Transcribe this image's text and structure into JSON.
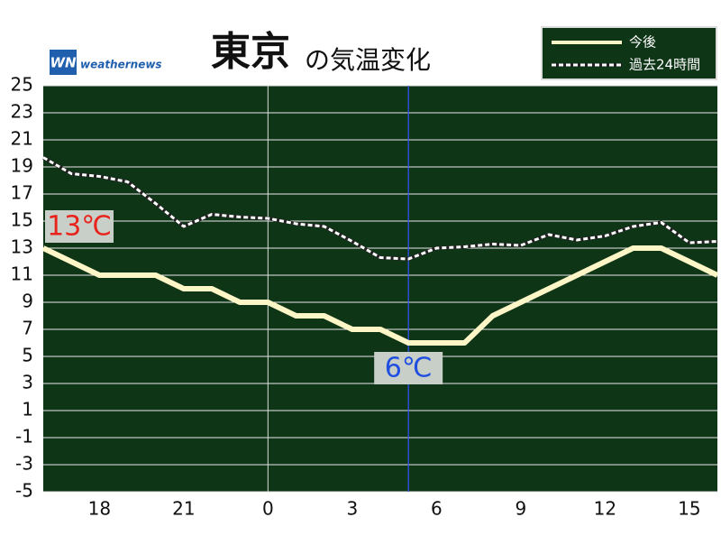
{
  "chart_data": {
    "type": "line",
    "title_parts": [
      "東京",
      "の気温変化"
    ],
    "logo": {
      "mark": "WN",
      "text": "weathernews"
    },
    "x": [
      -8,
      -7,
      -6,
      -5,
      -4,
      -3,
      -2,
      -1,
      0,
      1,
      2,
      3,
      4,
      5,
      6,
      7,
      8,
      9,
      10,
      11,
      12,
      13,
      14,
      15,
      16
    ],
    "xlim": [
      -8,
      16
    ],
    "xticks": [
      {
        "value": -6,
        "label": "18"
      },
      {
        "value": -3,
        "label": "21"
      },
      0,
      3,
      6,
      9,
      12,
      15
    ],
    "ylim": [
      -5,
      25
    ],
    "yticks": [
      25,
      23,
      21,
      19,
      17,
      15,
      13,
      11,
      9,
      7,
      5,
      3,
      1,
      -1,
      -3,
      -5
    ],
    "grid": true,
    "now": 5,
    "series": [
      {
        "name": "今後",
        "color": "#fff6c8",
        "style": "solid",
        "values": [
          13,
          12,
          11,
          11,
          11,
          10,
          10,
          9,
          9,
          8,
          8,
          7,
          7,
          6,
          6,
          6,
          8,
          9,
          10,
          11,
          12,
          13,
          13,
          12,
          11
        ],
        "value_labels": [
          "13℃",
          null,
          null,
          null,
          null,
          null,
          null,
          null,
          null,
          null,
          null,
          null,
          null,
          "6℃",
          null,
          null,
          null,
          null,
          null,
          null,
          null,
          null,
          null,
          null,
          null
        ]
      },
      {
        "name": "過去24時間",
        "color": "#ffffff",
        "style": "dashed",
        "values": [
          19.7,
          18.5,
          18.3,
          17.9,
          16.3,
          14.6,
          15.5,
          15.3,
          15.2,
          14.8,
          14.6,
          13.5,
          12.3,
          12.2,
          13.0,
          13.1,
          13.3,
          13.2,
          14.0,
          13.6,
          13.9,
          14.6,
          14.9,
          13.4,
          13.5
        ]
      }
    ]
  }
}
